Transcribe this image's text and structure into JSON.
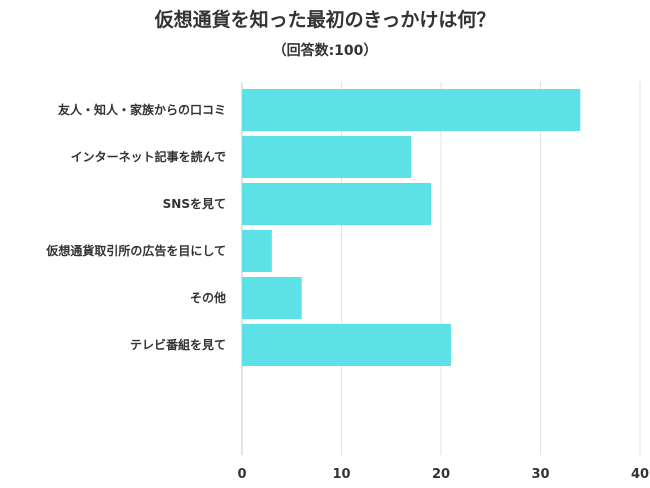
{
  "chart_data": {
    "type": "bar",
    "orientation": "horizontal",
    "title": "仮想通貨を知った最初のきっかけは何？",
    "subtitle": "（回答数:100）",
    "categories": [
      "友人・知人・家族からの口コミ",
      "インターネット記事を読んで",
      "SNSを見て",
      "仮想通貨取引所の広告を目にして",
      "その他",
      "テレビ番組を見て"
    ],
    "values": [
      34,
      17,
      19,
      3,
      6,
      21
    ],
    "xlim": [
      0,
      40
    ],
    "xticks": [
      "0",
      "10",
      "20",
      "30",
      "40"
    ],
    "grid": true,
    "bar_color": "#5ce1e6"
  }
}
